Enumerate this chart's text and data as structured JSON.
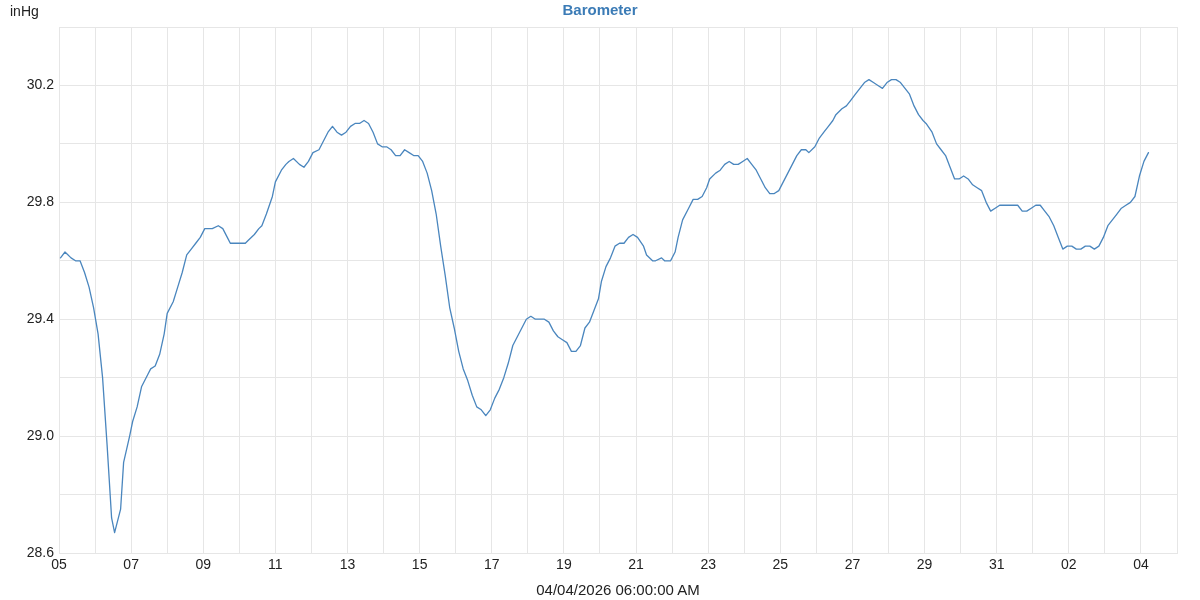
{
  "chart_data": {
    "type": "line",
    "title": "Barometer",
    "xlabel": "04/04/2026 06:00:00 AM",
    "ylabel": "inHg",
    "x": [
      "2026-03-05T01:00",
      "2026-03-05T04:00",
      "2026-03-05T08:00",
      "2026-03-05T11:00",
      "2026-03-05T14:00",
      "2026-03-05T17:00",
      "2026-03-05T20:00",
      "2026-03-05T23:00",
      "2026-03-06T02:00",
      "2026-03-06T05:00",
      "2026-03-06T08:00",
      "2026-03-06T11:00",
      "2026-03-06T13:00",
      "2026-03-06T17:00",
      "2026-03-06T19:00",
      "2026-03-06T23:00",
      "2026-03-07T01:00",
      "2026-03-07T04:00",
      "2026-03-07T07:00",
      "2026-03-07T11:00",
      "2026-03-07T13:00",
      "2026-03-07T16:00",
      "2026-03-07T19:00",
      "2026-03-07T22:00",
      "2026-03-08T00:00",
      "2026-03-08T04:00",
      "2026-03-08T07:00",
      "2026-03-08T10:00",
      "2026-03-08T13:00",
      "2026-03-08T16:00",
      "2026-03-08T19:00",
      "2026-03-08T22:00",
      "2026-03-09T01:00",
      "2026-03-09T04:00",
      "2026-03-09T06:00",
      "2026-03-09T10:00",
      "2026-03-09T13:00",
      "2026-03-09T16:00",
      "2026-03-09T18:00",
      "2026-03-09T22:00",
      "2026-03-10T01:00",
      "2026-03-10T04:00",
      "2026-03-10T06:00",
      "2026-03-10T10:00",
      "2026-03-10T13:00",
      "2026-03-10T15:00",
      "2026-03-10T18:00",
      "2026-03-10T22:00",
      "2026-03-11T00:00",
      "2026-03-11T04:00",
      "2026-03-11T07:00",
      "2026-03-11T09:00",
      "2026-03-11T12:00",
      "2026-03-11T16:00",
      "2026-03-11T19:00",
      "2026-03-11T22:00",
      "2026-03-12T01:00",
      "2026-03-12T05:00",
      "2026-03-12T08:00",
      "2026-03-12T11:00",
      "2026-03-12T14:00",
      "2026-03-12T17:00",
      "2026-03-12T20:00",
      "2026-03-12T23:00",
      "2026-03-13T02:00",
      "2026-03-13T05:00",
      "2026-03-13T08:00",
      "2026-03-13T11:00",
      "2026-03-13T14:00",
      "2026-03-13T17:00",
      "2026-03-13T20:00",
      "2026-03-13T23:00",
      "2026-03-14T02:00",
      "2026-03-14T05:00",
      "2026-03-14T08:00",
      "2026-03-14T11:00",
      "2026-03-14T14:00",
      "2026-03-14T17:00",
      "2026-03-14T20:00",
      "2026-03-14T23:00",
      "2026-03-15T02:00",
      "2026-03-15T05:00",
      "2026-03-15T08:00",
      "2026-03-15T11:00",
      "2026-03-15T14:00",
      "2026-03-15T17:00",
      "2026-03-15T20:00",
      "2026-03-15T23:00",
      "2026-03-16T02:00",
      "2026-03-16T05:00",
      "2026-03-16T08:00",
      "2026-03-16T11:00",
      "2026-03-16T14:00",
      "2026-03-16T17:00",
      "2026-03-16T20:00",
      "2026-03-16T23:00",
      "2026-03-17T02:00",
      "2026-03-17T05:00",
      "2026-03-17T08:00",
      "2026-03-17T11:00",
      "2026-03-17T14:00",
      "2026-03-17T17:00",
      "2026-03-17T20:00",
      "2026-03-17T23:00",
      "2026-03-18T02:00",
      "2026-03-18T05:00",
      "2026-03-18T08:00",
      "2026-03-18T11:00",
      "2026-03-18T14:00",
      "2026-03-18T17:00",
      "2026-03-18T20:00",
      "2026-03-18T23:00",
      "2026-03-19T02:00",
      "2026-03-19T05:00",
      "2026-03-19T08:00",
      "2026-03-19T11:00",
      "2026-03-19T14:00",
      "2026-03-19T17:00",
      "2026-03-19T20:00",
      "2026-03-19T23:00",
      "2026-03-20T01:00",
      "2026-03-20T04:00",
      "2026-03-20T07:00",
      "2026-03-20T10:00",
      "2026-03-20T13:00",
      "2026-03-20T16:00",
      "2026-03-20T19:00",
      "2026-03-20T22:00",
      "2026-03-21T01:00",
      "2026-03-21T05:00",
      "2026-03-21T07:00",
      "2026-03-21T11:00",
      "2026-03-21T13:00",
      "2026-03-21T17:00",
      "2026-03-21T19:00",
      "2026-03-21T23:00",
      "2026-03-22T02:00",
      "2026-03-22T04:00",
      "2026-03-22T07:00",
      "2026-03-22T11:00",
      "2026-03-22T14:00",
      "2026-03-22T17:00",
      "2026-03-22T20:00",
      "2026-03-22T23:00",
      "2026-03-23T01:00",
      "2026-03-23T05:00",
      "2026-03-23T08:00",
      "2026-03-23T11:00",
      "2026-03-23T14:00",
      "2026-03-23T17:00",
      "2026-03-23T20:00",
      "2026-03-23T23:00",
      "2026-03-24T02:00",
      "2026-03-24T05:00",
      "2026-03-24T08:00",
      "2026-03-24T11:00",
      "2026-03-24T14:00",
      "2026-03-24T17:00",
      "2026-03-24T20:00",
      "2026-03-24T23:00",
      "2026-03-25T02:00",
      "2026-03-25T05:00",
      "2026-03-25T08:00",
      "2026-03-25T11:00",
      "2026-03-25T14:00",
      "2026-03-25T17:00",
      "2026-03-25T19:00",
      "2026-03-25T23:00",
      "2026-03-26T02:00",
      "2026-03-26T05:00",
      "2026-03-26T08:00",
      "2026-03-26T11:00",
      "2026-03-26T13:00",
      "2026-03-26T17:00",
      "2026-03-26T20:00",
      "2026-03-26T23:00",
      "2026-03-27T02:00",
      "2026-03-27T05:00",
      "2026-03-27T08:00",
      "2026-03-27T11:00",
      "2026-03-27T14:00",
      "2026-03-27T17:00",
      "2026-03-27T20:00",
      "2026-03-27T23:00",
      "2026-03-28T02:00",
      "2026-03-28T05:00",
      "2026-03-28T08:00",
      "2026-03-28T11:00",
      "2026-03-28T14:00",
      "2026-03-28T17:00",
      "2026-03-28T20:00",
      "2026-03-28T23:00",
      "2026-03-29T01:00",
      "2026-03-29T05:00",
      "2026-03-29T08:00",
      "2026-03-29T11:00",
      "2026-03-29T14:00",
      "2026-03-29T17:00",
      "2026-03-29T20:00",
      "2026-03-29T23:00",
      "2026-03-30T02:00",
      "2026-03-30T05:00",
      "2026-03-30T08:00",
      "2026-03-30T11:00",
      "2026-03-30T14:00",
      "2026-03-30T17:00",
      "2026-03-30T20:00",
      "2026-03-30T23:00",
      "2026-03-31T02:00",
      "2026-03-31T05:00",
      "2026-03-31T08:00",
      "2026-03-31T11:00",
      "2026-03-31T14:00",
      "2026-03-31T17:00",
      "2026-03-31T20:00",
      "2026-03-31T23:00",
      "2026-04-01T02:00",
      "2026-04-01T05:00",
      "2026-04-01T08:00",
      "2026-04-01T11:00",
      "2026-04-01T14:00",
      "2026-04-01T17:00",
      "2026-04-01T20:00",
      "2026-04-01T23:00",
      "2026-04-02T02:00",
      "2026-04-02T05:00",
      "2026-04-02T08:00",
      "2026-04-02T11:00",
      "2026-04-02T14:00",
      "2026-04-02T17:00",
      "2026-04-02T20:00",
      "2026-04-02T23:00",
      "2026-04-03T02:00",
      "2026-04-03T05:00",
      "2026-04-03T08:00",
      "2026-04-03T11:00",
      "2026-04-03T14:00",
      "2026-04-03T17:00",
      "2026-04-03T20:00",
      "2026-04-03T23:00",
      "2026-04-04T02:00",
      "2026-04-04T05:00"
    ],
    "series": [
      {
        "color": "#4a86be",
        "values": [
          29.61,
          29.63,
          29.61,
          29.6,
          29.6,
          29.56,
          29.51,
          29.44,
          29.35,
          29.2,
          28.97,
          28.72,
          28.67,
          28.75,
          28.91,
          29.0,
          29.05,
          29.1,
          29.17,
          29.21,
          29.23,
          29.24,
          29.28,
          29.35,
          29.42,
          29.46,
          29.51,
          29.56,
          29.62,
          29.64,
          29.66,
          29.68,
          29.71,
          29.71,
          29.71,
          29.72,
          29.71,
          29.68,
          29.66,
          29.66,
          29.66,
          29.66,
          29.67,
          29.69,
          29.71,
          29.72,
          29.76,
          29.82,
          29.87,
          29.91,
          29.93,
          29.94,
          29.95,
          29.93,
          29.92,
          29.94,
          29.97,
          29.98,
          30.01,
          30.04,
          30.06,
          30.04,
          30.03,
          30.04,
          30.06,
          30.07,
          30.07,
          30.08,
          30.07,
          30.04,
          30.0,
          29.99,
          29.99,
          29.98,
          29.96,
          29.96,
          29.98,
          29.97,
          29.96,
          29.96,
          29.94,
          29.9,
          29.84,
          29.76,
          29.65,
          29.55,
          29.44,
          29.37,
          29.29,
          29.23,
          29.19,
          29.14,
          29.1,
          29.09,
          29.07,
          29.09,
          29.13,
          29.16,
          29.2,
          29.25,
          29.31,
          29.34,
          29.37,
          29.4,
          29.41,
          29.4,
          29.4,
          29.4,
          29.39,
          29.36,
          29.34,
          29.33,
          29.32,
          29.29,
          29.29,
          29.31,
          29.37,
          29.39,
          29.43,
          29.47,
          29.53,
          29.58,
          29.61,
          29.65,
          29.66,
          29.66,
          29.68,
          29.69,
          29.68,
          29.65,
          29.62,
          29.6,
          29.6,
          29.61,
          29.6,
          29.6,
          29.63,
          29.68,
          29.74,
          29.78,
          29.81,
          29.81,
          29.82,
          29.85,
          29.88,
          29.9,
          29.91,
          29.93,
          29.94,
          29.93,
          29.93,
          29.94,
          29.95,
          29.93,
          29.91,
          29.88,
          29.85,
          29.83,
          29.83,
          29.84,
          29.87,
          29.9,
          29.93,
          29.96,
          29.98,
          29.98,
          29.97,
          29.99,
          30.02,
          30.04,
          30.06,
          30.08,
          30.1,
          30.12,
          30.13,
          30.15,
          30.17,
          30.19,
          30.21,
          30.22,
          30.21,
          30.2,
          30.19,
          30.21,
          30.22,
          30.22,
          30.21,
          30.19,
          30.17,
          30.13,
          30.1,
          30.08,
          30.07,
          30.04,
          30.0,
          29.98,
          29.96,
          29.92,
          29.88,
          29.88,
          29.89,
          29.88,
          29.86,
          29.85,
          29.84,
          29.8,
          29.77,
          29.78,
          29.79,
          29.79,
          29.79,
          29.79,
          29.79,
          29.77,
          29.77,
          29.78,
          29.79,
          29.79,
          29.77,
          29.75,
          29.72,
          29.68,
          29.64,
          29.65,
          29.65,
          29.64,
          29.64,
          29.65,
          29.65,
          29.64,
          29.65,
          29.68,
          29.72,
          29.74,
          29.76,
          29.78,
          29.79,
          29.8,
          29.82,
          29.89,
          29.94,
          29.97
        ]
      }
    ],
    "xlim": [
      "2026-03-05",
      "2026-04-05"
    ],
    "xticks": [
      {
        "value": "2026-03-05",
        "label": "05"
      },
      {
        "value": "2026-03-06",
        "label": null
      },
      {
        "value": "2026-03-07",
        "label": "07"
      },
      {
        "value": "2026-03-08",
        "label": null
      },
      {
        "value": "2026-03-09",
        "label": "09"
      },
      {
        "value": "2026-03-10",
        "label": null
      },
      {
        "value": "2026-03-11",
        "label": "11"
      },
      {
        "value": "2026-03-12",
        "label": null
      },
      {
        "value": "2026-03-13",
        "label": "13"
      },
      {
        "value": "2026-03-14",
        "label": null
      },
      {
        "value": "2026-03-15",
        "label": "15"
      },
      {
        "value": "2026-03-16",
        "label": null
      },
      {
        "value": "2026-03-17",
        "label": "17"
      },
      {
        "value": "2026-03-18",
        "label": null
      },
      {
        "value": "2026-03-19",
        "label": "19"
      },
      {
        "value": "2026-03-20",
        "label": null
      },
      {
        "value": "2026-03-21",
        "label": "21"
      },
      {
        "value": "2026-03-22",
        "label": null
      },
      {
        "value": "2026-03-23",
        "label": "23"
      },
      {
        "value": "2026-03-24",
        "label": null
      },
      {
        "value": "2026-03-25",
        "label": "25"
      },
      {
        "value": "2026-03-26",
        "label": null
      },
      {
        "value": "2026-03-27",
        "label": "27"
      },
      {
        "value": "2026-03-28",
        "label": null
      },
      {
        "value": "2026-03-29",
        "label": "29"
      },
      {
        "value": "2026-03-30",
        "label": null
      },
      {
        "value": "2026-03-31",
        "label": "31"
      },
      {
        "value": "2026-04-01",
        "label": null
      },
      {
        "value": "2026-04-02",
        "label": "02"
      },
      {
        "value": "2026-04-03",
        "label": null
      },
      {
        "value": "2026-04-04",
        "label": "04"
      },
      {
        "value": "2026-04-05",
        "label": null
      }
    ],
    "ylim": [
      28.6,
      30.4
    ],
    "yticks": [
      28.6,
      {
        "value": 28.8,
        "label": null
      },
      {
        "value": 29,
        "label": "29.0"
      },
      {
        "value": 29.2,
        "label": null
      },
      29.4,
      {
        "value": 29.6,
        "label": null
      },
      29.8,
      {
        "value": 30,
        "label": null
      },
      30.2,
      {
        "value": 30.4,
        "label": null
      }
    ],
    "grid": true
  }
}
